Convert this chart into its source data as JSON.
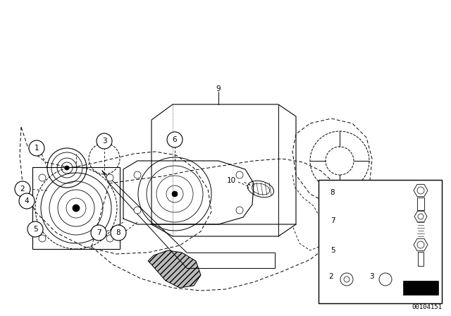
{
  "bg_color": "#ffffff",
  "diagram_code": "00104151",
  "fig_w": 6.4,
  "fig_h": 4.48,
  "dpi": 100
}
